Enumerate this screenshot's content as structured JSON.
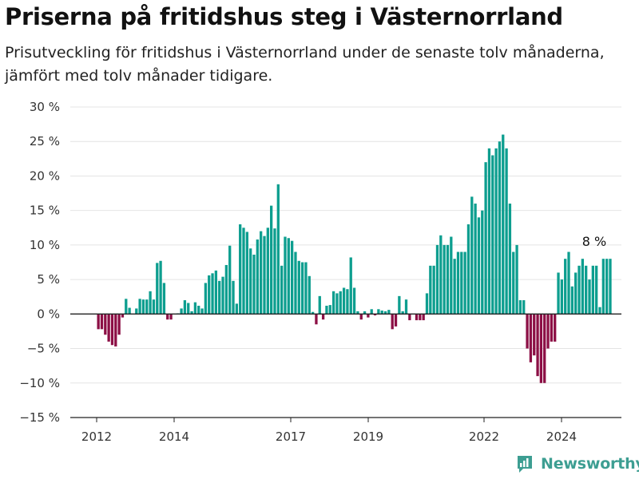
{
  "title": "Priserna på fritidshus steg i Västernorrland",
  "subtitle": "Prisutveckling för fritidshus i Västernorrland under de senaste tolv månaderna, jämfört med tolv månader tidigare.",
  "brand": {
    "name": "Newsworthy",
    "icon": "newsworthy-logo-icon",
    "color": "#3d9e92"
  },
  "colors": {
    "positive": "#0d9e8f",
    "negative": "#8c0f45",
    "zero_line": "#222222",
    "grid": "#e4e4e4"
  },
  "chart_data": {
    "type": "bar",
    "title": "Priserna på fritidshus steg i Västernorrland",
    "ylim": [
      -15,
      30
    ],
    "yticks": [
      30,
      25,
      20,
      15,
      10,
      5,
      0,
      -5,
      -10,
      -15
    ],
    "ytick_labels": [
      "30 %",
      "25 %",
      "20 %",
      "15 %",
      "10 %",
      "5 %",
      "0 %",
      "−5 %",
      "−10 %",
      "−15 %"
    ],
    "x_ticks": [
      "2012",
      "2014",
      "2017",
      "2019",
      "2022",
      "2024"
    ],
    "grid": true,
    "annotation": "8 %",
    "unit": "%",
    "series": [
      {
        "values": [
          -2.2,
          -2.2,
          -3,
          -4,
          -4.5,
          -4.7,
          -3,
          -0.5,
          2.2,
          0.9,
          0,
          0.8,
          2.2,
          2.1,
          2.1,
          3.3,
          2.1,
          7.4,
          7.7,
          4.5,
          -0.8,
          -0.8,
          0,
          0.1,
          0.8,
          2.0,
          1.6,
          0.4,
          1.7,
          1.2,
          0.8,
          4.5,
          5.6,
          5.9,
          6.3,
          4.8,
          5.4,
          7.1,
          9.9,
          4.8,
          1.5,
          13.0,
          12.5,
          11.9,
          9.5,
          8.6,
          10.8,
          12.0,
          11.3,
          12.5,
          15.7,
          12.4,
          18.8,
          7.0,
          11.2,
          11.0,
          10.6,
          9.0,
          7.7,
          7.5,
          7.5,
          5.5,
          0.3,
          -1.5,
          2.6,
          -0.8,
          1.2,
          1.3,
          3.3,
          3.0,
          3.3,
          3.8,
          3.6,
          8.2,
          3.8,
          0.4,
          -0.8,
          0.4,
          -0.5,
          0.7,
          -0.2,
          0.7,
          0.5,
          0.4,
          0.6,
          -2.2,
          -1.8,
          2.6,
          0.4,
          2.1,
          -0.9,
          0,
          -0.9,
          -0.9,
          -0.9,
          3.0,
          7.0,
          7.0,
          10.0,
          11.4,
          10.0,
          10.0,
          11.2,
          8.0,
          9.0,
          9.0,
          9.0,
          13.0,
          17.0,
          16.0,
          14.0,
          15.0,
          22.0,
          24.0,
          23.0,
          24.0,
          25.0,
          26.0,
          24.0,
          16.0,
          9.0,
          10.0,
          2.0,
          2.0,
          -5.0,
          -7.0,
          -6.0,
          -9.0,
          -10.0,
          -10.0,
          -5.0,
          -4.0,
          -4.0,
          6.0,
          5.0,
          8.0,
          9.0,
          4.0,
          6.0,
          7.0,
          8.0,
          7.0,
          5.0,
          7.0,
          7.0,
          1.0,
          8.0,
          8.0,
          8.0
        ]
      }
    ]
  }
}
